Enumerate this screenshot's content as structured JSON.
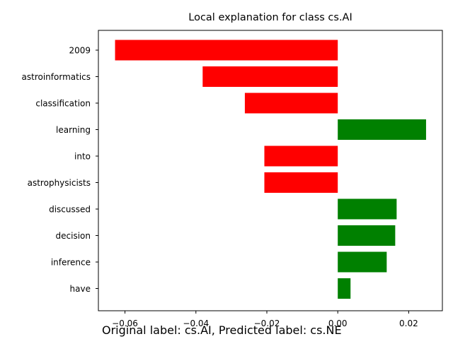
{
  "chart_data": {
    "type": "bar",
    "orientation": "horizontal",
    "title": "Local explanation for class cs.AI",
    "categories": [
      "2009",
      "astroinformatics",
      "classification",
      "learning",
      "into",
      "astrophysicists",
      "discussed",
      "decision",
      "inference",
      "have"
    ],
    "values": [
      -0.0628,
      -0.0381,
      -0.0262,
      0.0249,
      -0.0207,
      -0.0207,
      0.0166,
      0.0162,
      0.0138,
      0.0036
    ],
    "xlim": [
      -0.0675,
      0.0295
    ],
    "xticks": [
      -0.06,
      -0.04,
      -0.02,
      0.0,
      0.02
    ],
    "xtick_labels": [
      "−0.06",
      "−0.04",
      "−0.02",
      "0.00",
      "0.02"
    ],
    "colors": {
      "negative": "#ff0000",
      "positive": "#008000"
    },
    "grid": false,
    "legend": "none"
  },
  "footer_text": "Original label: cs.AI, Predicted label: cs.NE"
}
